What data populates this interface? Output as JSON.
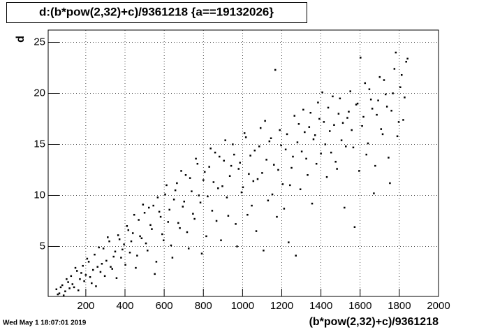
{
  "chart_data": {
    "type": "scatter",
    "title": "d:(b*pow(2,32)+c)/9361218 {a==19132026}",
    "xlabel": "(b*pow(2,32)+c)/9361218",
    "ylabel": "d",
    "timestamp": "Wed May  1 18:07:01 2019",
    "xlim": [
      8,
      2000
    ],
    "ylim": [
      0.1,
      26.2
    ],
    "xticks": [
      200,
      400,
      600,
      800,
      1000,
      1200,
      1400,
      1600,
      1800,
      2000
    ],
    "yticks": [
      5,
      10,
      15,
      20,
      25
    ],
    "grid": true,
    "series": [
      {
        "color": "#000000",
        "x": [
          50,
          65,
          80,
          95,
          110,
          125,
          140,
          155,
          170,
          185,
          200,
          215,
          230,
          245,
          260,
          275,
          290,
          305,
          320,
          335,
          350,
          365,
          380,
          395,
          410,
          425,
          440,
          455,
          470,
          485,
          500,
          515,
          530,
          545,
          560,
          575,
          590,
          605,
          620,
          635,
          650,
          665,
          680,
          695,
          710,
          725,
          740,
          755,
          770,
          785,
          800,
          815,
          830,
          845,
          860,
          875,
          890,
          905,
          920,
          935,
          950,
          965,
          980,
          995,
          1010,
          1025,
          1040,
          1055,
          1070,
          1085,
          1100,
          1115,
          1130,
          1145,
          1160,
          1175,
          1190,
          1205,
          1220,
          1235,
          1250,
          1265,
          1280,
          1295,
          1310,
          1325,
          1340,
          1355,
          1370,
          1385,
          1400,
          1415,
          1430,
          1445,
          1460,
          1475,
          1490,
          1505,
          1520,
          1535,
          1550,
          1565,
          1580,
          1595,
          1610,
          1625,
          1640,
          1655,
          1670,
          1685,
          1700,
          1715,
          1730,
          1745,
          1760,
          1775,
          1790,
          1805,
          1820,
          1835
        ],
        "values": [
          0.8,
          0.4,
          1.2,
          0.6,
          1.5,
          2.1,
          1.0,
          2.6,
          1.8,
          3.1,
          2.2,
          3.5,
          1.4,
          4.2,
          3.0,
          2.5,
          4.8,
          3.6,
          5.5,
          2.8,
          4.5,
          6.1,
          3.9,
          5.2,
          7.0,
          4.4,
          6.3,
          2.9,
          7.6,
          5.8,
          8.3,
          4.6,
          7.1,
          9.0,
          3.5,
          8.4,
          6.2,
          10.1,
          7.4,
          5.1,
          9.6,
          11.2,
          6.8,
          8.9,
          12.0,
          4.8,
          10.4,
          7.7,
          13.1,
          9.3,
          11.5,
          6.0,
          12.8,
          8.5,
          14.2,
          10.7,
          5.6,
          13.4,
          9.8,
          11.9,
          15.0,
          7.2,
          12.6,
          10.3,
          16.1,
          8.1,
          13.9,
          11.4,
          6.5,
          14.8,
          12.2,
          17.3,
          9.5,
          15.6,
          13.0,
          7.9,
          16.4,
          11.1,
          14.5,
          5.4,
          12.7,
          17.8,
          15.2,
          10.6,
          18.4,
          13.6,
          16.7,
          9.2,
          15.9,
          19.1,
          14.1,
          17.2,
          11.8,
          16.3,
          19.7,
          13.3,
          18.0,
          15.4,
          8.8,
          17.6,
          20.2,
          14.7,
          18.9,
          12.4,
          16.8,
          21.0,
          15.1,
          19.4,
          10.2,
          17.9,
          21.6,
          16.0,
          19.9,
          13.7,
          18.3,
          22.4,
          15.8,
          20.6,
          17.4,
          23.1
        ]
      },
      {
        "color": "#000000",
        "x": [
          57,
          72,
          87,
          102,
          117,
          132,
          147,
          162,
          177,
          192,
          207,
          222,
          237,
          252,
          267,
          282,
          297,
          312,
          327,
          342,
          357,
          372,
          387,
          402,
          417,
          432,
          447,
          462,
          477,
          492,
          507,
          522,
          537,
          552,
          567,
          582,
          597,
          612,
          627,
          642,
          657,
          672,
          687,
          702,
          717,
          732,
          747,
          762,
          777,
          792,
          807,
          822,
          837,
          852,
          867,
          882,
          897,
          912,
          927,
          942,
          957,
          972,
          987,
          1002,
          1017,
          1032,
          1047,
          1062,
          1077,
          1092,
          1107,
          1122,
          1137,
          1152,
          1167,
          1182,
          1197,
          1212,
          1227,
          1242,
          1257,
          1272,
          1287,
          1302,
          1317,
          1332,
          1347,
          1362,
          1377,
          1392,
          1407,
          1422,
          1437,
          1452,
          1467,
          1482,
          1497,
          1512,
          1527,
          1542,
          1557,
          1572,
          1587,
          1602,
          1617,
          1632,
          1647,
          1662,
          1677,
          1692,
          1707,
          1722,
          1737,
          1752,
          1767,
          1782,
          1797,
          1812,
          1827,
          1842
        ],
        "values": [
          0.3,
          1.0,
          0.2,
          1.8,
          0.9,
          1.3,
          2.9,
          0.7,
          2.4,
          1.6,
          3.8,
          2.0,
          2.7,
          1.1,
          4.9,
          3.3,
          2.1,
          5.9,
          3.0,
          4.0,
          1.9,
          5.7,
          4.7,
          3.2,
          6.6,
          5.5,
          8.1,
          4.1,
          6.0,
          9.1,
          5.3,
          8.8,
          6.7,
          2.3,
          9.8,
          7.9,
          5.6,
          11.0,
          8.6,
          3.9,
          10.5,
          7.3,
          12.4,
          9.4,
          6.4,
          11.7,
          8.2,
          13.6,
          10.0,
          4.3,
          12.3,
          9.9,
          14.6,
          11.3,
          7.5,
          13.8,
          10.9,
          15.4,
          8.0,
          12.9,
          14.0,
          5.0,
          13.2,
          10.8,
          15.7,
          12.1,
          9.0,
          14.4,
          11.6,
          16.6,
          4.6,
          13.5,
          15.3,
          10.1,
          22.3,
          12.5,
          14.9,
          8.7,
          16.0,
          11.0,
          13.8,
          4.1,
          17.0,
          14.3,
          16.2,
          12.0,
          18.1,
          15.5,
          13.1,
          17.5,
          20.1,
          15.0,
          18.6,
          14.2,
          16.9,
          12.6,
          19.5,
          17.1,
          14.8,
          18.2,
          16.4,
          6.9,
          19.0,
          23.5,
          17.7,
          14.0,
          20.4,
          18.5,
          12.9,
          19.3,
          16.5,
          21.3,
          18.7,
          11.2,
          20.0,
          24.0,
          17.2,
          21.8,
          19.6,
          23.4
        ]
      }
    ]
  }
}
